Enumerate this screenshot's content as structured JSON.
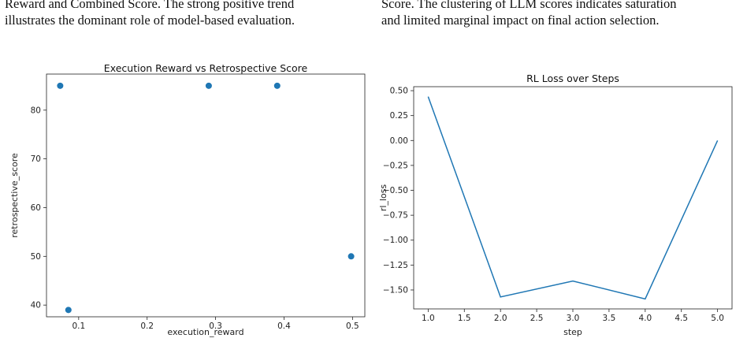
{
  "captions": {
    "left": {
      "line1": "Reward and Combined Score. The strong positive trend",
      "line2": "illustrates the dominant role of model-based evaluation."
    },
    "right": {
      "line1": "Score. The clustering of LLM scores indicates saturation",
      "line2": "and limited marginal impact on final action selection."
    }
  },
  "chart_data": [
    {
      "type": "scatter",
      "title": "Execution Reward vs Retrospective Score",
      "xlabel": "execution_reward",
      "ylabel": "retrospective_score",
      "x": [
        0.073,
        0.085,
        0.29,
        0.39,
        0.498
      ],
      "y": [
        85,
        39,
        85,
        85,
        50
      ],
      "xlim": [
        0.053,
        0.518
      ],
      "ylim": [
        37.6,
        87.4
      ],
      "xticks": [
        0.1,
        0.2,
        0.3,
        0.4,
        0.5
      ],
      "xtick_labels": [
        "0.1",
        "0.2",
        "0.3",
        "0.4",
        "0.5"
      ],
      "yticks": [
        40,
        50,
        60,
        70,
        80
      ],
      "ytick_labels": [
        "40",
        "50",
        "60",
        "70",
        "80"
      ],
      "color": "#1f77b4",
      "grid": false
    },
    {
      "type": "line",
      "title": "RL Loss over Steps",
      "xlabel": "step",
      "ylabel": "rl_loss",
      "x": [
        1.0,
        2.0,
        3.0,
        4.0,
        5.0
      ],
      "y": [
        0.44,
        -1.57,
        -1.41,
        -1.59,
        0.0
      ],
      "xlim": [
        0.8,
        5.2
      ],
      "ylim": [
        -1.69,
        0.54
      ],
      "xticks": [
        1.0,
        1.5,
        2.0,
        2.5,
        3.0,
        3.5,
        4.0,
        4.5,
        5.0
      ],
      "xtick_labels": [
        "1.0",
        "1.5",
        "2.0",
        "2.5",
        "3.0",
        "3.5",
        "4.0",
        "4.5",
        "5.0"
      ],
      "yticks": [
        0.5,
        0.25,
        0.0,
        -0.25,
        -0.5,
        -0.75,
        -1.0,
        -1.25,
        -1.5
      ],
      "ytick_labels": [
        "0.50",
        "0.25",
        "0.00",
        "−0.25",
        "−0.50",
        "−0.75",
        "−1.00",
        "−1.25",
        "−1.50"
      ],
      "color": "#1f77b4",
      "grid": false
    }
  ]
}
